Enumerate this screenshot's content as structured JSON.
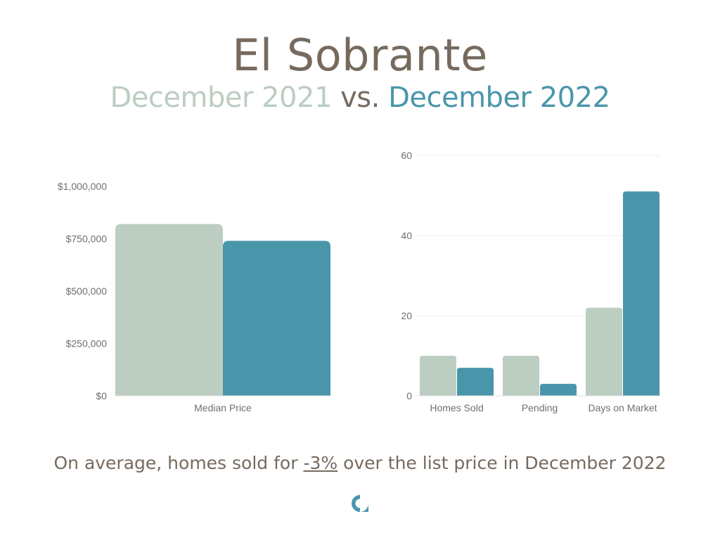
{
  "header": {
    "title": "El Sobrante",
    "period_a": "December 2021",
    "vs": "vs.",
    "period_b": "December 2022"
  },
  "colors": {
    "period_a": "#bccdc1",
    "period_b": "#4996ab",
    "text": "#766a5e"
  },
  "chart_data": [
    {
      "type": "bar",
      "categories": [
        "Median Price"
      ],
      "series": [
        {
          "name": "December 2021",
          "values": [
            820000
          ]
        },
        {
          "name": "December 2022",
          "values": [
            740000
          ]
        }
      ],
      "ylim": [
        0,
        1000000
      ],
      "yticks": [
        0,
        250000,
        500000,
        750000,
        1000000
      ],
      "ytick_labels": [
        "$0",
        "$250,000",
        "$500,000",
        "$750,000",
        "$1,000,000"
      ],
      "grid": false
    },
    {
      "type": "bar",
      "categories": [
        "Homes Sold",
        "Pending",
        "Days on Market"
      ],
      "series": [
        {
          "name": "December 2021",
          "values": [
            10,
            10,
            22
          ]
        },
        {
          "name": "December 2022",
          "values": [
            7,
            3,
            51
          ]
        }
      ],
      "ylim": [
        0,
        60
      ],
      "yticks": [
        0,
        20,
        40,
        60
      ],
      "ytick_labels": [
        "0",
        "20",
        "40",
        "60"
      ],
      "grid": true
    }
  ],
  "footer": {
    "prefix": "On average, homes sold for ",
    "percent": "-3%",
    "suffix": " over the list price in December 2022"
  },
  "logo": {
    "icon": "brand-logo-icon"
  }
}
